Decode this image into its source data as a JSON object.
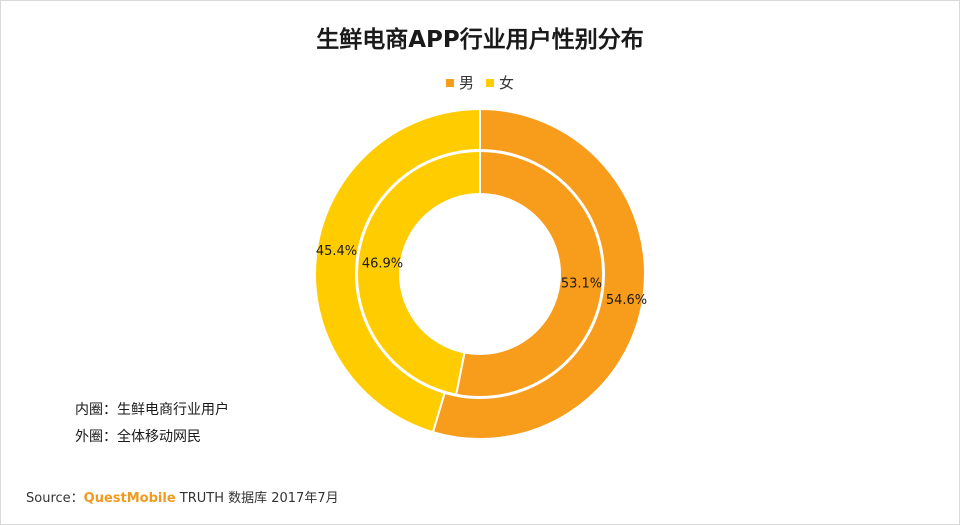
{
  "chart_data": {
    "type": "pie",
    "title": "生鲜电商APP行业用户性别分布",
    "legend": [
      "男",
      "女"
    ],
    "legend_position": "top-center",
    "rings": [
      {
        "name": "内圈：生鲜电商行业用户",
        "slices": [
          {
            "label": "男",
            "value": 53.1,
            "display": "53.1%",
            "color": "#f89c1c"
          },
          {
            "label": "女",
            "value": 46.9,
            "display": "46.9%",
            "color": "#ffcc00"
          }
        ]
      },
      {
        "name": "外圈：全体移动网民",
        "slices": [
          {
            "label": "男",
            "value": 54.6,
            "display": "54.6%",
            "color": "#f89c1c"
          },
          {
            "label": "女",
            "value": 45.4,
            "display": "45.4%",
            "color": "#ffcc00"
          }
        ]
      }
    ]
  },
  "notes": {
    "inner": "内圈：生鲜电商行业用户",
    "outer": "外圈：全体移动网民"
  },
  "source": {
    "prefix": "Source：",
    "brand": "QuestMobile",
    "suffix": " TRUTH 数据库 2017年7月"
  },
  "colors": {
    "male": "#f89c1c",
    "female": "#ffcc00",
    "brand": "#f29a1f"
  }
}
